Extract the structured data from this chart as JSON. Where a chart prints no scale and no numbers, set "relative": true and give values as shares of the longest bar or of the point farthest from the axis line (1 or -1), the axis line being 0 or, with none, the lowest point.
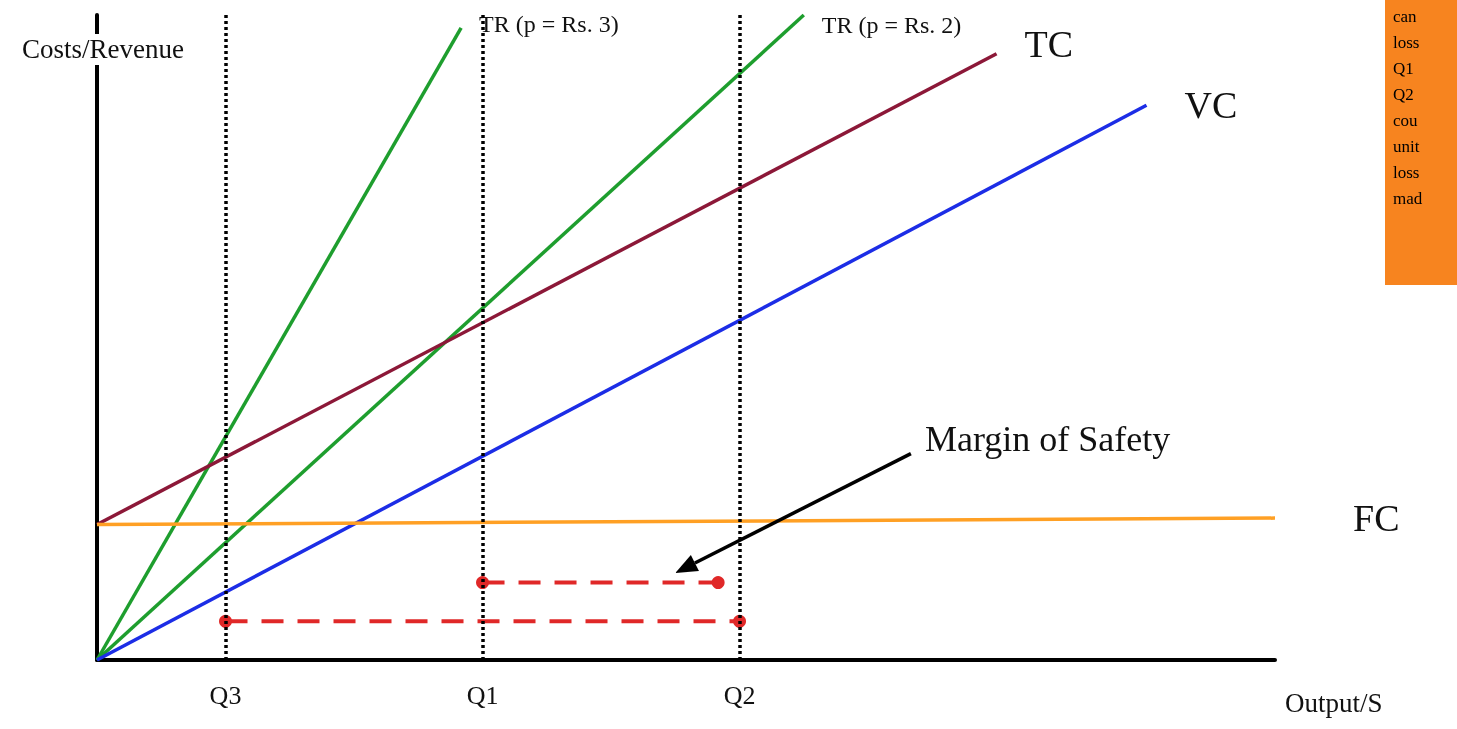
{
  "chart_data": {
    "type": "line",
    "relative": true,
    "xlabel": "Output/S",
    "ylabel": "Costs/Revenue",
    "legend": false,
    "grid": false,
    "marker": "none",
    "line_style": "solid",
    "categories": [
      null,
      null,
      null,
      null,
      null,
      null,
      "Q3",
      null,
      null,
      null,
      null,
      null,
      null,
      null,
      null,
      null,
      null,
      null,
      "Q1",
      null,
      null,
      null,
      null,
      null,
      null,
      null,
      null,
      null,
      null,
      null,
      "Q2",
      null,
      null,
      null,
      null,
      null,
      null,
      null,
      null,
      null,
      null,
      null,
      null,
      null,
      null,
      null,
      null,
      null,
      null,
      null,
      null,
      null,
      null,
      null,
      null,
      null
    ],
    "series": [
      {
        "name": "TR (p = Rs. 3)",
        "color": "#1e9e2e",
        "values": [
          0,
          null,
          null,
          null,
          null,
          null,
          null,
          null,
          null,
          null,
          null,
          null,
          null,
          null,
          null,
          null,
          null,
          0.98,
          null,
          null,
          null,
          null,
          null,
          null,
          null,
          null,
          null,
          null,
          null,
          null,
          null,
          null,
          null,
          null,
          null,
          null,
          null,
          null,
          null,
          null,
          null,
          null,
          null,
          null,
          null,
          null,
          null,
          null,
          null,
          null,
          null,
          null,
          null,
          null,
          null,
          null
        ]
      },
      {
        "name": "TR (p = Rs. 2)",
        "color": "#1e9e2e",
        "values": [
          0,
          null,
          null,
          null,
          null,
          null,
          null,
          null,
          null,
          null,
          null,
          null,
          null,
          null,
          null,
          null,
          null,
          null,
          null,
          null,
          null,
          null,
          null,
          null,
          null,
          null,
          null,
          null,
          null,
          null,
          null,
          null,
          null,
          1,
          null,
          null,
          null,
          null,
          null,
          null,
          null,
          null,
          null,
          null,
          null,
          null,
          null,
          null,
          null,
          null,
          null,
          null,
          null,
          null,
          null,
          null
        ]
      },
      {
        "name": "TC",
        "color": "#8c1838",
        "values": [
          0.21,
          null,
          null,
          null,
          null,
          null,
          null,
          null,
          null,
          null,
          null,
          null,
          null,
          null,
          null,
          null,
          null,
          null,
          null,
          null,
          null,
          null,
          null,
          null,
          null,
          null,
          null,
          null,
          null,
          null,
          null,
          null,
          null,
          null,
          null,
          null,
          null,
          null,
          null,
          null,
          null,
          null,
          0.94,
          null,
          null,
          null,
          null,
          null,
          null,
          null,
          null,
          null,
          null,
          null,
          null,
          null
        ]
      },
      {
        "name": "VC",
        "color": "#1c2de6",
        "values": [
          0,
          null,
          null,
          null,
          null,
          null,
          null,
          null,
          null,
          null,
          null,
          null,
          null,
          null,
          null,
          null,
          null,
          null,
          null,
          null,
          null,
          null,
          null,
          null,
          null,
          null,
          null,
          null,
          null,
          null,
          null,
          null,
          null,
          null,
          null,
          null,
          null,
          null,
          null,
          null,
          null,
          null,
          null,
          null,
          null,
          null,
          null,
          null,
          null,
          0.86,
          null,
          null,
          null,
          null,
          null,
          null
        ]
      },
      {
        "name": "FC",
        "color": "#ffa024",
        "values": [
          0.21,
          null,
          null,
          null,
          null,
          null,
          null,
          null,
          null,
          null,
          null,
          null,
          null,
          null,
          null,
          null,
          null,
          null,
          null,
          null,
          null,
          null,
          null,
          null,
          null,
          null,
          null,
          null,
          null,
          null,
          null,
          null,
          null,
          null,
          null,
          null,
          null,
          null,
          null,
          null,
          null,
          null,
          null,
          null,
          null,
          null,
          null,
          null,
          null,
          null,
          null,
          null,
          null,
          null,
          null,
          0.22
        ]
      },
      {
        "color": "#e02828",
        "marker": "circle",
        "line_style": "dashed",
        "values": [
          null,
          null,
          null,
          null,
          null,
          null,
          null,
          null,
          null,
          null,
          null,
          null,
          null,
          null,
          null,
          null,
          null,
          null,
          0.12,
          null,
          null,
          null,
          null,
          null,
          null,
          null,
          null,
          null,
          null,
          0.12,
          null,
          null,
          null,
          null,
          null,
          null,
          null,
          null,
          null,
          null,
          null,
          null,
          null,
          null,
          null,
          null,
          null,
          null,
          null,
          null,
          null,
          null,
          null,
          null,
          null,
          null
        ]
      },
      {
        "color": "#e02828",
        "marker": "circle",
        "line_style": "dashed",
        "values": [
          null,
          null,
          null,
          null,
          null,
          null,
          0.06,
          null,
          null,
          null,
          null,
          null,
          null,
          null,
          null,
          null,
          null,
          null,
          null,
          null,
          null,
          null,
          null,
          null,
          null,
          null,
          null,
          null,
          null,
          null,
          0.06,
          null,
          null,
          null,
          null,
          null,
          null,
          null,
          null,
          null,
          null,
          null,
          null,
          null,
          null,
          null,
          null,
          null,
          null,
          null,
          null,
          null,
          null,
          null,
          null,
          null
        ]
      }
    ],
    "ref_lines": [
      {
        "axis": "x",
        "value": "Q3",
        "color": "#000000",
        "line_style": "dotted"
      },
      {
        "axis": "x",
        "value": "Q1",
        "color": "#000000",
        "line_style": "dotted"
      },
      {
        "axis": "x",
        "value": "Q2",
        "color": "#000000",
        "line_style": "dotted"
      }
    ],
    "annotations": [
      "Margin of Safety",
      "can\nloss\nQ1\nQ2\ncou\nunit\nloss\nmad"
    ]
  }
}
